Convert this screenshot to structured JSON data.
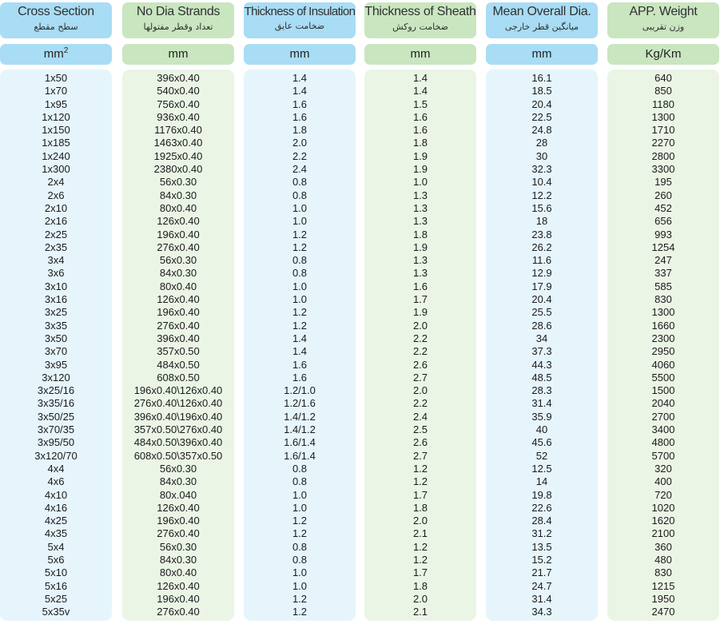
{
  "columns": [
    {
      "title": "Cross Section",
      "subtitle": "سطح مقطع",
      "unit": "mm",
      "unit_sup": "2",
      "values": [
        "1x50",
        "1x70",
        "1x95",
        "1x120",
        "1x150",
        "1x185",
        "1x240",
        "1x300",
        "2x4",
        "2x6",
        "2x10",
        "2x16",
        "2x25",
        "2x35",
        "3x4",
        "3x6",
        "3x10",
        "3x16",
        "3x25",
        "3x35",
        "3x50",
        "3x70",
        "3x95",
        "3x120",
        "3x25/16",
        "3x35/16",
        "3x50/25",
        "3x70/35",
        "3x95/50",
        "3x120/70",
        "4x4",
        "4x6",
        "4x10",
        "4x16",
        "4x25",
        "4x35",
        "5x4",
        "5x6",
        "5x10",
        "5x16",
        "5x25",
        "5x35v"
      ]
    },
    {
      "title": "No Dia Strands",
      "subtitle": "تعداد وقطر مفتولها",
      "unit": "mm",
      "unit_sup": "",
      "values": [
        "396x0.40",
        "540x0.40",
        "756x0.40",
        "936x0.40",
        "1176x0.40",
        "1463x0.40",
        "1925x0.40",
        "2380x0.40",
        "56x0.30",
        "84x0.30",
        "80x0.40",
        "126x0.40",
        "196x0.40",
        "276x0.40",
        "56x0.30",
        "84x0.30",
        "80x0.40",
        "126x0.40",
        "196x0.40",
        "276x0.40",
        "396x0.40",
        "357x0.50",
        "484x0.50",
        "608x0.50",
        "196x0.40\\126x0.40",
        "276x0.40\\126x0.40",
        "396x0.40\\196x0.40",
        "357x0.50\\276x0.40",
        "484x0.50\\396x0.40",
        "608x0.50\\357x0.50",
        "56x0.30",
        "84x0.30",
        "80x.040",
        "126x0.40",
        "196x0.40",
        "276x0.40",
        "56x0.30",
        "84x0.30",
        "80x0.40",
        "126x0.40",
        "196x0.40",
        "276x0.40"
      ]
    },
    {
      "title": "Thickness of Insulation",
      "subtitle": "ضخامت عایق",
      "unit": "mm",
      "unit_sup": "",
      "values": [
        "1.4",
        "1.4",
        "1.6",
        "1.6",
        "1.8",
        "2.0",
        "2.2",
        "2.4",
        "0.8",
        "0.8",
        "1.0",
        "1.0",
        "1.2",
        "1.2",
        "0.8",
        "0.8",
        "1.0",
        "1.0",
        "1.2",
        "1.2",
        "1.4",
        "1.4",
        "1.6",
        "1.6",
        "1.2/1.0",
        "1.2/1.6",
        "1.4/1.2",
        "1.4/1.2",
        "1.6/1.4",
        "1.6/1.4",
        "0.8",
        "0.8",
        "1.0",
        "1.0",
        "1.2",
        "1.2",
        "0.8",
        "0.8",
        "1.0",
        "1.0",
        "1.2",
        "1.2"
      ]
    },
    {
      "title": "Thickness of Sheath",
      "subtitle": "ضخامت روکش",
      "unit": "mm",
      "unit_sup": "",
      "values": [
        "1.4",
        "1.4",
        "1.5",
        "1.6",
        "1.6",
        "1.8",
        "1.9",
        "1.9",
        "1.0",
        "1.3",
        "1.3",
        "1.3",
        "1.8",
        "1.9",
        "1.3",
        "1.3",
        "1.6",
        "1.7",
        "1.9",
        "2.0",
        "2.2",
        "2.2",
        "2.6",
        "2.7",
        "2.0",
        "2.2",
        "2.4",
        "2.5",
        "2.6",
        "2.7",
        "1.2",
        "1.2",
        "1.7",
        "1.8",
        "2.0",
        "2.1",
        "1.2",
        "1.2",
        "1.7",
        "1.8",
        "2.0",
        "2.1"
      ]
    },
    {
      "title": "Mean Overall Dia.",
      "subtitle": "میانگین قطر خارجی",
      "unit": "mm",
      "unit_sup": "",
      "values": [
        "16.1",
        "18.5",
        "20.4",
        "22.5",
        "24.8",
        "28",
        "30",
        "32.3",
        "10.4",
        "12.2",
        "15.6",
        "18",
        "23.8",
        "26.2",
        "11.6",
        "12.9",
        "17.9",
        "20.4",
        "25.5",
        "28.6",
        "34",
        "37.3",
        "44.3",
        "48.5",
        "28.3",
        "31.4",
        "35.9",
        "40",
        "45.6",
        "52",
        "12.5",
        "14",
        "19.8",
        "22.6",
        "28.4",
        "31.2",
        "13.5",
        "15.2",
        "21.7",
        "24.7",
        "31.4",
        "34.3"
      ]
    },
    {
      "title": "APP. Weight",
      "subtitle": "وزن تقریبی",
      "unit": "Kg/Km",
      "unit_sup": "",
      "values": [
        "640",
        "850",
        "1180",
        "1300",
        "1710",
        "2270",
        "2800",
        "3300",
        "195",
        "260",
        "452",
        "656",
        "993",
        "1254",
        "247",
        "337",
        "585",
        "830",
        "1300",
        "1660",
        "2300",
        "2950",
        "4060",
        "5500",
        "1500",
        "2040",
        "2700",
        "3400",
        "4800",
        "5700",
        "320",
        "400",
        "720",
        "1020",
        "1620",
        "2100",
        "360",
        "480",
        "830",
        "1215",
        "1950",
        "2470"
      ]
    }
  ],
  "colors": {
    "blue_header": "#a9dcf5",
    "blue_body": "#e6f5fc",
    "green_header": "#c9e6c0",
    "green_body": "#ebf5e6"
  }
}
